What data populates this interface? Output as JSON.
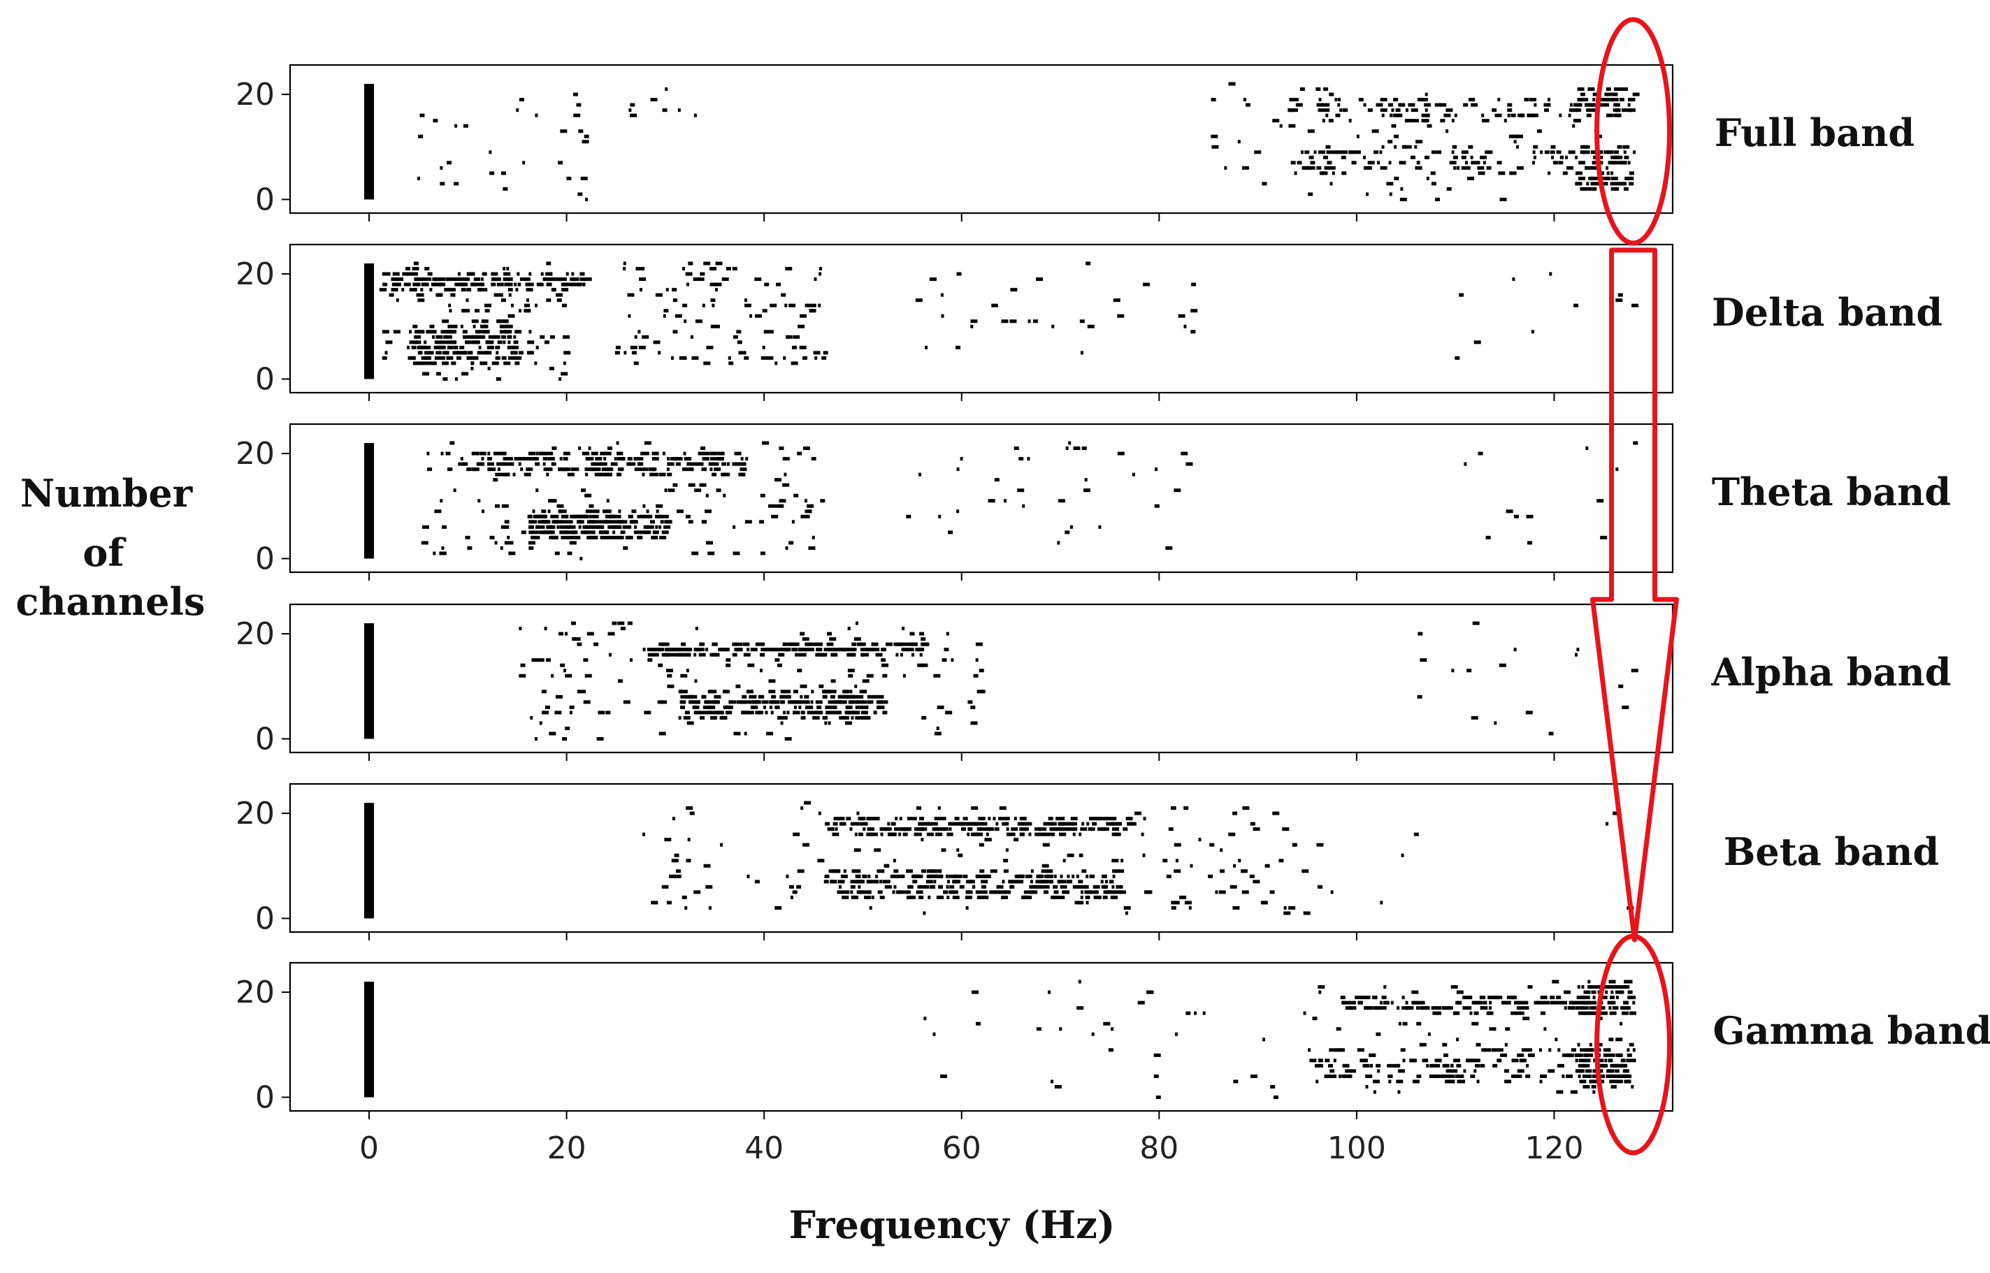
{
  "chart_data": {
    "type": "scatter",
    "ylabel_lines": [
      "Number",
      "of",
      "channels"
    ],
    "xlabel": "Frequency (Hz)",
    "xlim": [
      -8,
      132
    ],
    "ylim": [
      -1,
      24
    ],
    "x_ticks": [
      0,
      20,
      40,
      60,
      80,
      100,
      120
    ],
    "y_ticks": [
      0,
      20
    ],
    "annotation_color": "#e8141c",
    "panels": [
      {
        "band": "Full band",
        "zero_bar": [
          0,
          22
        ],
        "clusters": [
          {
            "x": [
              4,
              22
            ],
            "y": [
              0,
              21
            ],
            "n": 30,
            "seed": 11
          },
          {
            "x": [
              26,
              36
            ],
            "y": [
              15,
              22
            ],
            "n": 8,
            "seed": 12
          },
          {
            "x": [
              85,
              105
            ],
            "y": [
              0,
              22
            ],
            "n": 38,
            "seed": 13
          },
          {
            "x": [
              93,
              127
            ],
            "y": [
              15,
              19
            ],
            "n": 95,
            "seed": 14
          },
          {
            "x": [
              93,
              127
            ],
            "y": [
              5,
              10
            ],
            "n": 95,
            "seed": 15
          },
          {
            "x": [
              100,
              127
            ],
            "y": [
              0,
              22
            ],
            "n": 55,
            "seed": 16
          },
          {
            "x": [
              122,
              128
            ],
            "y": [
              2,
              10
            ],
            "n": 70,
            "seed": 17
          },
          {
            "x": [
              122,
              128
            ],
            "y": [
              16,
              21
            ],
            "n": 55,
            "seed": 18
          }
        ]
      },
      {
        "band": "Delta  band",
        "zero_bar": [
          0,
          22
        ],
        "clusters": [
          {
            "x": [
              1,
              22
            ],
            "y": [
              17,
              20
            ],
            "n": 140,
            "seed": 21
          },
          {
            "x": [
              4,
              15
            ],
            "y": [
              3,
              10
            ],
            "n": 160,
            "seed": 22
          },
          {
            "x": [
              1,
              20
            ],
            "y": [
              0,
              22
            ],
            "n": 120,
            "seed": 23
          },
          {
            "x": [
              24,
              46
            ],
            "y": [
              2,
              22
            ],
            "n": 110,
            "seed": 24
          },
          {
            "x": [
              55,
              85
            ],
            "y": [
              3,
              22
            ],
            "n": 30,
            "seed": 25
          },
          {
            "x": [
              106,
              128
            ],
            "y": [
              2,
              22
            ],
            "n": 10,
            "seed": 26
          }
        ]
      },
      {
        "band": "Theta band",
        "zero_bar": [
          0,
          22
        ],
        "clusters": [
          {
            "x": [
              9,
              38
            ],
            "y": [
              16,
              20
            ],
            "n": 170,
            "seed": 31
          },
          {
            "x": [
              16,
              30
            ],
            "y": [
              4,
              9
            ],
            "n": 200,
            "seed": 32
          },
          {
            "x": [
              5,
              46
            ],
            "y": [
              0,
              22
            ],
            "n": 150,
            "seed": 33
          },
          {
            "x": [
              54,
              84
            ],
            "y": [
              2,
              22
            ],
            "n": 35,
            "seed": 34
          },
          {
            "x": [
              110,
              128
            ],
            "y": [
              3,
              22
            ],
            "n": 12,
            "seed": 35
          }
        ]
      },
      {
        "band": "Alpha band",
        "zero_bar": [
          0,
          22
        ],
        "clusters": [
          {
            "x": [
              28,
              56
            ],
            "y": [
              16,
              18
            ],
            "n": 170,
            "seed": 41
          },
          {
            "x": [
              31,
              52
            ],
            "y": [
              4,
              9
            ],
            "n": 220,
            "seed": 42
          },
          {
            "x": [
              15,
              62
            ],
            "y": [
              0,
              22
            ],
            "n": 160,
            "seed": 43
          },
          {
            "x": [
              106,
              128
            ],
            "y": [
              0,
              22
            ],
            "n": 18,
            "seed": 44
          }
        ]
      },
      {
        "band": "Beta band",
        "zero_bar": [
          0,
          22
        ],
        "clusters": [
          {
            "x": [
              46,
              77
            ],
            "y": [
              16,
              19
            ],
            "n": 200,
            "seed": 51
          },
          {
            "x": [
              46,
              76
            ],
            "y": [
              4,
              9
            ],
            "n": 260,
            "seed": 52
          },
          {
            "x": [
              27,
              95
            ],
            "y": [
              1,
              22
            ],
            "n": 150,
            "seed": 53
          },
          {
            "x": [
              85,
              106
            ],
            "y": [
              1,
              18
            ],
            "n": 18,
            "seed": 54
          },
          {
            "x": [
              124,
              128
            ],
            "y": [
              1,
              21
            ],
            "n": 5,
            "seed": 55
          }
        ]
      },
      {
        "band": "Gamma band",
        "zero_bar": [
          0,
          22
        ],
        "clusters": [
          {
            "x": [
              98,
              127
            ],
            "y": [
              16,
              19
            ],
            "n": 120,
            "seed": 61
          },
          {
            "x": [
              95,
              127
            ],
            "y": [
              3,
              9
            ],
            "n": 140,
            "seed": 62
          },
          {
            "x": [
              56,
              106
            ],
            "y": [
              0,
              22
            ],
            "n": 40,
            "seed": 63
          },
          {
            "x": [
              100,
              127
            ],
            "y": [
              0,
              22
            ],
            "n": 70,
            "seed": 64
          },
          {
            "x": [
              122,
              128
            ],
            "y": [
              2,
              10
            ],
            "n": 70,
            "seed": 65
          },
          {
            "x": [
              122,
              128
            ],
            "y": [
              16,
              22
            ],
            "n": 60,
            "seed": 66
          }
        ]
      }
    ]
  }
}
